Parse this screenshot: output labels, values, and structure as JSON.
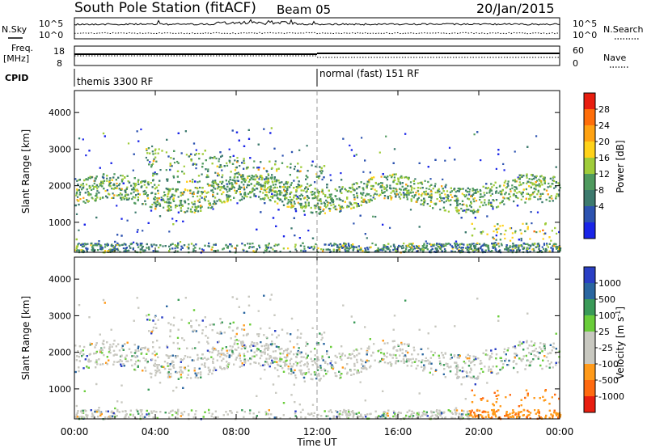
{
  "header": {
    "station": "South Pole Station (fitACF)",
    "beam": "Beam 05",
    "date": "20/Jan/2015"
  },
  "top_panels": {
    "nsky_label": "N.Sky",
    "nsearch_label": "N.Search",
    "freq_label_1": "Freq.",
    "freq_label_2": "[MHz]",
    "nave_label": "Nave",
    "cpid_label": "CPID",
    "noise_ticks": [
      "10^5",
      "10^0"
    ],
    "freq_ticks": [
      "18",
      "8"
    ],
    "nave_ticks": [
      "60",
      "0"
    ],
    "cpid_segments": [
      {
        "label": "themis 3300 RF",
        "start_hour": 0
      },
      {
        "label": "normal (fast) 151 RF",
        "start_hour": 12
      }
    ]
  },
  "chart_data": [
    {
      "type": "heatmap",
      "title": "",
      "xlabel": "Time UT",
      "ylabel": "Slant Range [km]",
      "x_ticks": [
        "00:00",
        "04:00",
        "08:00",
        "12:00",
        "16:00",
        "20:00",
        "00:00"
      ],
      "x_range_hours": [
        0,
        24
      ],
      "y_ticks": [
        1000,
        2000,
        3000,
        4000
      ],
      "y_range_km": [
        180,
        4600
      ],
      "colorbar": {
        "label": "Power [dB]",
        "ticks": [
          "4",
          "8",
          "12",
          "16",
          "20",
          "24",
          "28"
        ],
        "colors": [
          "#1a25e8",
          "#2d53b0",
          "#3d7a6e",
          "#4f9a5e",
          "#9fcc3a",
          "#ffd21a",
          "#ffa212",
          "#ff6e0a",
          "#e81e10"
        ]
      },
      "dominant_features": [
        {
          "hours": [
            0,
            24
          ],
          "range_km": [
            1300,
            2300
          ],
          "level": "moderate"
        },
        {
          "hours": [
            4,
            12
          ],
          "range_km": [
            2000,
            3200
          ],
          "level": "moderate"
        },
        {
          "hours": [
            20,
            24
          ],
          "range_km": [
            1500,
            1900
          ],
          "level": "strong"
        }
      ]
    },
    {
      "type": "heatmap",
      "title": "",
      "xlabel": "Time UT",
      "ylabel": "Slant Range [km]",
      "x_ticks": [
        "00:00",
        "04:00",
        "08:00",
        "12:00",
        "16:00",
        "20:00",
        "00:00"
      ],
      "x_range_hours": [
        0,
        24
      ],
      "y_ticks": [
        1000,
        2000,
        3000,
        4000
      ],
      "y_range_km": [
        180,
        4600
      ],
      "colorbar": {
        "label": "Velocity [m s^-1]",
        "label_base": "Velocity [m s",
        "label_exp": "-1",
        "label_end": "]",
        "ticks": [
          "1000",
          "500",
          "100",
          "25",
          "-25",
          "-100",
          "-500",
          "-1000"
        ],
        "colors": [
          "#2a3fc4",
          "#2a66a0",
          "#3a9a58",
          "#6acd3a",
          "#c8c8c0",
          "#c8c8c0",
          "#ff9a1a",
          "#ff6a10",
          "#e81e10"
        ]
      },
      "dominant_features": [
        {
          "hours": [
            0,
            24
          ],
          "range_km": [
            1300,
            3000
          ],
          "level": "near-zero"
        },
        {
          "hours": [
            20,
            24
          ],
          "range_km": [
            300,
            900
          ],
          "level": "negative"
        }
      ]
    }
  ]
}
